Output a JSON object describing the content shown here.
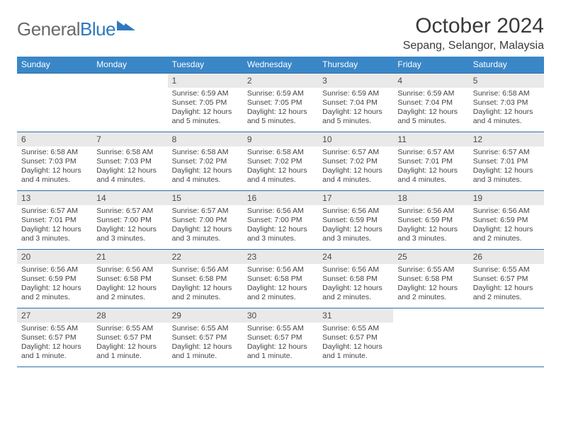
{
  "brand": {
    "part1": "General",
    "part2": "Blue"
  },
  "title": {
    "month": "October 2024",
    "location": "Sepang, Selangor, Malaysia"
  },
  "colors": {
    "header_bg": "#3a87c8",
    "header_text": "#ffffff",
    "daynum_bg": "#e9e9e9",
    "rule": "#2f6fa8",
    "brand_gray": "#6a6a6a",
    "brand_blue": "#2f78bd"
  },
  "weekdays": [
    "Sunday",
    "Monday",
    "Tuesday",
    "Wednesday",
    "Thursday",
    "Friday",
    "Saturday"
  ],
  "layout": {
    "first_weekday_index": 2,
    "days_in_month": 31
  },
  "days": {
    "1": {
      "sunrise": "6:59 AM",
      "sunset": "7:05 PM",
      "daylight": "12 hours and 5 minutes."
    },
    "2": {
      "sunrise": "6:59 AM",
      "sunset": "7:05 PM",
      "daylight": "12 hours and 5 minutes."
    },
    "3": {
      "sunrise": "6:59 AM",
      "sunset": "7:04 PM",
      "daylight": "12 hours and 5 minutes."
    },
    "4": {
      "sunrise": "6:59 AM",
      "sunset": "7:04 PM",
      "daylight": "12 hours and 5 minutes."
    },
    "5": {
      "sunrise": "6:58 AM",
      "sunset": "7:03 PM",
      "daylight": "12 hours and 4 minutes."
    },
    "6": {
      "sunrise": "6:58 AM",
      "sunset": "7:03 PM",
      "daylight": "12 hours and 4 minutes."
    },
    "7": {
      "sunrise": "6:58 AM",
      "sunset": "7:03 PM",
      "daylight": "12 hours and 4 minutes."
    },
    "8": {
      "sunrise": "6:58 AM",
      "sunset": "7:02 PM",
      "daylight": "12 hours and 4 minutes."
    },
    "9": {
      "sunrise": "6:58 AM",
      "sunset": "7:02 PM",
      "daylight": "12 hours and 4 minutes."
    },
    "10": {
      "sunrise": "6:57 AM",
      "sunset": "7:02 PM",
      "daylight": "12 hours and 4 minutes."
    },
    "11": {
      "sunrise": "6:57 AM",
      "sunset": "7:01 PM",
      "daylight": "12 hours and 4 minutes."
    },
    "12": {
      "sunrise": "6:57 AM",
      "sunset": "7:01 PM",
      "daylight": "12 hours and 3 minutes."
    },
    "13": {
      "sunrise": "6:57 AM",
      "sunset": "7:01 PM",
      "daylight": "12 hours and 3 minutes."
    },
    "14": {
      "sunrise": "6:57 AM",
      "sunset": "7:00 PM",
      "daylight": "12 hours and 3 minutes."
    },
    "15": {
      "sunrise": "6:57 AM",
      "sunset": "7:00 PM",
      "daylight": "12 hours and 3 minutes."
    },
    "16": {
      "sunrise": "6:56 AM",
      "sunset": "7:00 PM",
      "daylight": "12 hours and 3 minutes."
    },
    "17": {
      "sunrise": "6:56 AM",
      "sunset": "6:59 PM",
      "daylight": "12 hours and 3 minutes."
    },
    "18": {
      "sunrise": "6:56 AM",
      "sunset": "6:59 PM",
      "daylight": "12 hours and 3 minutes."
    },
    "19": {
      "sunrise": "6:56 AM",
      "sunset": "6:59 PM",
      "daylight": "12 hours and 2 minutes."
    },
    "20": {
      "sunrise": "6:56 AM",
      "sunset": "6:59 PM",
      "daylight": "12 hours and 2 minutes."
    },
    "21": {
      "sunrise": "6:56 AM",
      "sunset": "6:58 PM",
      "daylight": "12 hours and 2 minutes."
    },
    "22": {
      "sunrise": "6:56 AM",
      "sunset": "6:58 PM",
      "daylight": "12 hours and 2 minutes."
    },
    "23": {
      "sunrise": "6:56 AM",
      "sunset": "6:58 PM",
      "daylight": "12 hours and 2 minutes."
    },
    "24": {
      "sunrise": "6:56 AM",
      "sunset": "6:58 PM",
      "daylight": "12 hours and 2 minutes."
    },
    "25": {
      "sunrise": "6:55 AM",
      "sunset": "6:58 PM",
      "daylight": "12 hours and 2 minutes."
    },
    "26": {
      "sunrise": "6:55 AM",
      "sunset": "6:57 PM",
      "daylight": "12 hours and 2 minutes."
    },
    "27": {
      "sunrise": "6:55 AM",
      "sunset": "6:57 PM",
      "daylight": "12 hours and 1 minute."
    },
    "28": {
      "sunrise": "6:55 AM",
      "sunset": "6:57 PM",
      "daylight": "12 hours and 1 minute."
    },
    "29": {
      "sunrise": "6:55 AM",
      "sunset": "6:57 PM",
      "daylight": "12 hours and 1 minute."
    },
    "30": {
      "sunrise": "6:55 AM",
      "sunset": "6:57 PM",
      "daylight": "12 hours and 1 minute."
    },
    "31": {
      "sunrise": "6:55 AM",
      "sunset": "6:57 PM",
      "daylight": "12 hours and 1 minute."
    }
  },
  "labels": {
    "sunrise": "Sunrise:",
    "sunset": "Sunset:",
    "daylight": "Daylight:"
  }
}
